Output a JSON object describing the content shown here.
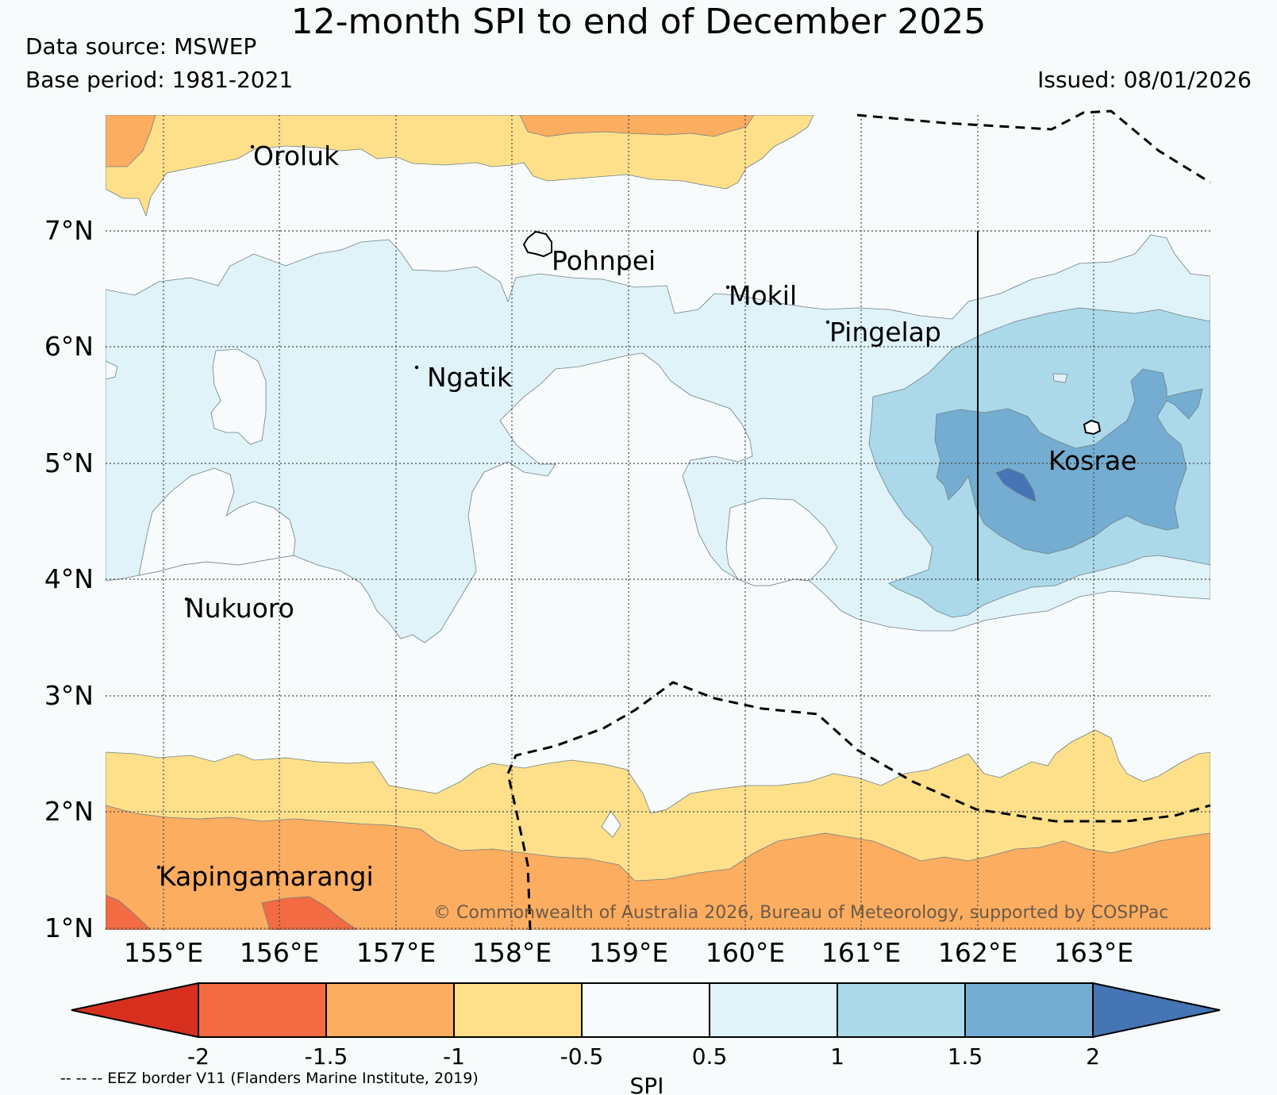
{
  "header": {
    "title": "12-month SPI to end of December 2025",
    "data_source": "Data source: MSWEP",
    "base_period": "Base period: 1981-2021",
    "issued": "Issued: 08/01/2026"
  },
  "map": {
    "lat_labels": [
      "7°N",
      "6°N",
      "5°N",
      "4°N",
      "3°N",
      "2°N",
      "1°N"
    ],
    "lon_labels": [
      "155°E",
      "156°E",
      "157°E",
      "158°E",
      "159°E",
      "160°E",
      "161°E",
      "162°E",
      "163°E"
    ],
    "places": {
      "oroluk": "Oroluk",
      "pohnpei": "Pohnpei",
      "mokil": "Mokil",
      "pingelap": "Pingelap",
      "ngatik": "Ngatik",
      "kosrae": "Kosrae",
      "nukuoro": "Nukuoro",
      "kapingamarangi": "Kapingamarangi"
    },
    "copyright": "© Commonwealth of Australia 2026, Bureau of Meteorology, supported by COSPPac"
  },
  "colorbar": {
    "ticks": [
      "-2",
      "-1.5",
      "-1",
      "-0.5",
      "0.5",
      "1",
      "1.5",
      "2"
    ],
    "label": "SPI",
    "colors": {
      "lt_minus2": "#d7301f",
      "m2_m15": "#f26b43",
      "m15_m1": "#fdad60",
      "m1_m05": "#fee08b",
      "m05_05": "#f8fbfc",
      "p05_1": "#e0f3f8",
      "p1_15": "#abd9e9",
      "p15_2": "#74add1",
      "gt2": "#4575b4"
    }
  },
  "legend": {
    "eez_note": "-- -- -- EEZ border V11 (Flanders Marine Institute, 2019)"
  }
}
